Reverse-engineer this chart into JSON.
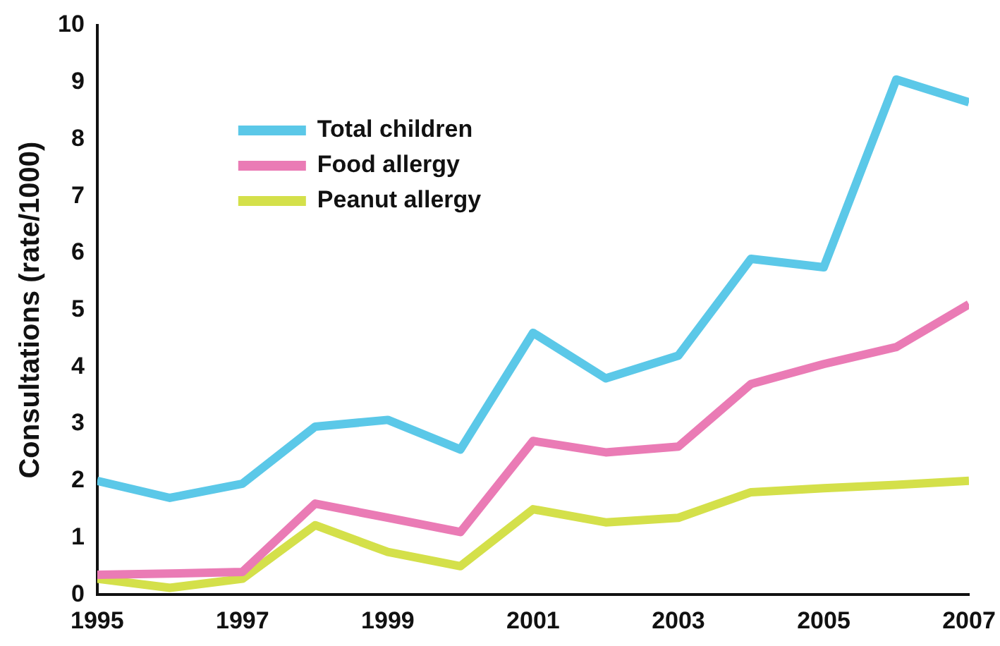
{
  "chart_data": {
    "type": "line",
    "ylabel": "Consultations (rate/1000)",
    "x": [
      1995,
      1996,
      1997,
      1998,
      1999,
      2000,
      2001,
      2002,
      2003,
      2004,
      2005,
      2006,
      2007
    ],
    "xlim": [
      1995,
      2007
    ],
    "xticks": [
      1995,
      1997,
      1999,
      2001,
      2003,
      2005,
      2007
    ],
    "ylim": [
      0,
      10
    ],
    "yticks": [
      0,
      1,
      2,
      3,
      4,
      5,
      6,
      7,
      8,
      9,
      10
    ],
    "grid": false,
    "legend": "top left",
    "marker": "none",
    "line_style": "solid",
    "series": [
      {
        "name": "Total children",
        "color": "#5bc8e8",
        "values": [
          2.0,
          1.7,
          1.95,
          2.95,
          3.07,
          2.55,
          4.6,
          3.8,
          4.2,
          5.9,
          5.75,
          9.05,
          8.65
        ]
      },
      {
        "name": "Food allergy",
        "color": "#ea7bb5",
        "values": [
          0.35,
          0.37,
          0.4,
          1.6,
          1.35,
          1.1,
          2.7,
          2.5,
          2.6,
          3.7,
          4.05,
          4.35,
          5.1
        ]
      },
      {
        "name": "Peanut allergy",
        "color": "#d4e04a",
        "values": [
          0.28,
          0.12,
          0.28,
          1.22,
          0.75,
          0.5,
          1.5,
          1.27,
          1.35,
          1.8,
          1.87,
          1.93,
          2.0
        ]
      }
    ]
  }
}
